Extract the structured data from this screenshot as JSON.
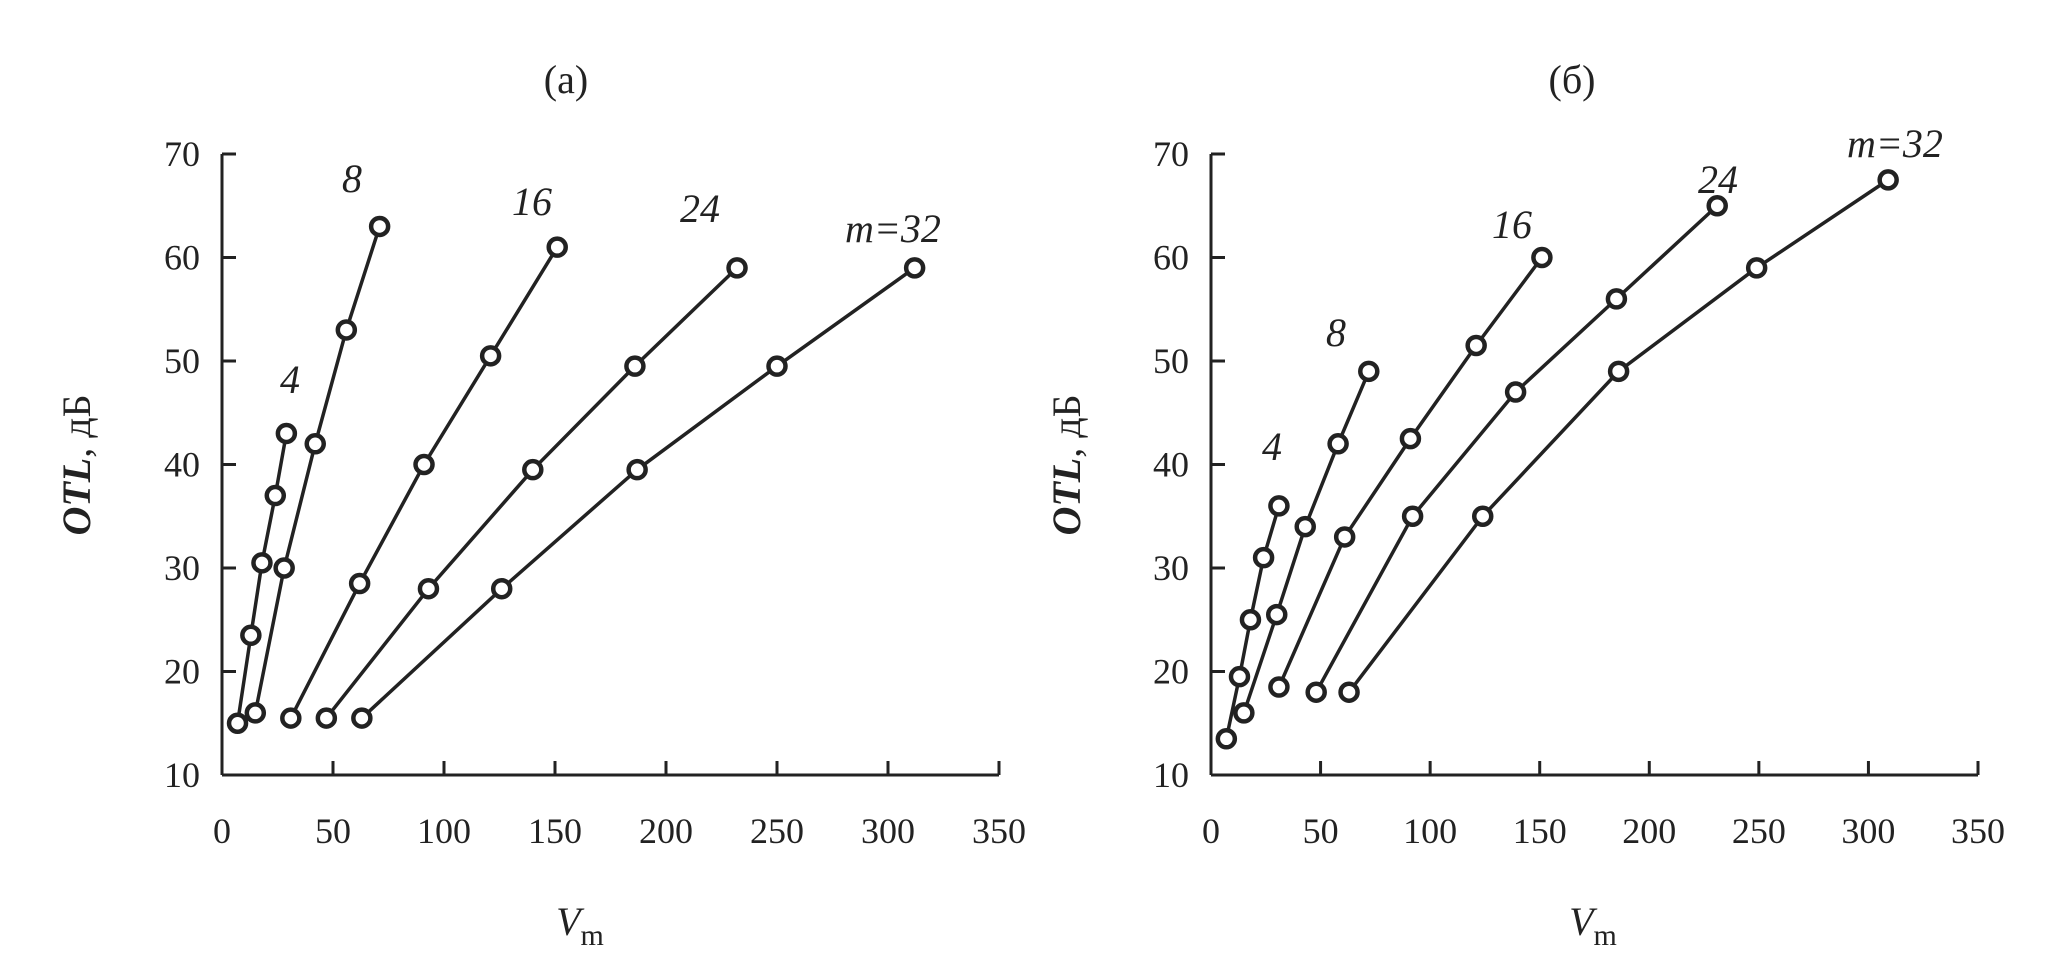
{
  "chart_data": [
    {
      "type": "line",
      "title": "(а)",
      "xlabel": "V",
      "xlabel_sub": "m",
      "ylabel": "OTL",
      "ylabel_unit": ", дБ",
      "xlim": [
        0,
        350
      ],
      "ylim": [
        10,
        70
      ],
      "xticks": [
        "0",
        "50",
        "100",
        "150",
        "200",
        "250",
        "300",
        "350"
      ],
      "yticks": [
        "10",
        "20",
        "30",
        "40",
        "50",
        "60",
        "70"
      ],
      "grid": false,
      "series": [
        {
          "name": "4",
          "x": [
            7,
            13,
            18,
            24,
            29
          ],
          "y": [
            15,
            23.5,
            30.5,
            37,
            43
          ]
        },
        {
          "name": "8",
          "x": [
            15,
            28,
            42,
            56,
            71
          ],
          "y": [
            16,
            30,
            42,
            53,
            63
          ]
        },
        {
          "name": "16",
          "x": [
            31,
            62,
            91,
            121,
            151
          ],
          "y": [
            15.5,
            28.5,
            40,
            50.5,
            61
          ]
        },
        {
          "name": "24",
          "x": [
            47,
            93,
            140,
            186,
            232
          ],
          "y": [
            15.5,
            28,
            39.5,
            49.5,
            59
          ]
        },
        {
          "name": "m=32",
          "x": [
            63,
            126,
            187,
            250,
            312
          ],
          "y": [
            15.5,
            28,
            39.5,
            49.5,
            59
          ]
        }
      ]
    },
    {
      "type": "line",
      "title": "(б)",
      "xlabel": "V",
      "xlabel_sub": "m",
      "ylabel": "OTL",
      "ylabel_unit": ", дБ",
      "xlim": [
        0,
        350
      ],
      "ylim": [
        10,
        70
      ],
      "xticks": [
        "0",
        "50",
        "100",
        "150",
        "200",
        "250",
        "300",
        "350"
      ],
      "yticks": [
        "10",
        "20",
        "30",
        "40",
        "50",
        "60",
        "70"
      ],
      "grid": false,
      "series": [
        {
          "name": "4",
          "x": [
            7,
            13,
            18,
            24,
            31
          ],
          "y": [
            13.5,
            19.5,
            25,
            31,
            36
          ]
        },
        {
          "name": "8",
          "x": [
            15,
            30,
            43,
            58,
            72
          ],
          "y": [
            16,
            25.5,
            34,
            42,
            49
          ]
        },
        {
          "name": "16",
          "x": [
            31,
            61,
            91,
            121,
            151
          ],
          "y": [
            18.5,
            33,
            42.5,
            51.5,
            60
          ]
        },
        {
          "name": "24",
          "x": [
            48,
            92,
            139,
            185,
            231
          ],
          "y": [
            18,
            35,
            47,
            56,
            65
          ]
        },
        {
          "name": "m=32",
          "x": [
            63,
            124,
            186,
            249,
            309
          ],
          "y": [
            18,
            35,
            49,
            59,
            67.5
          ]
        }
      ]
    }
  ]
}
